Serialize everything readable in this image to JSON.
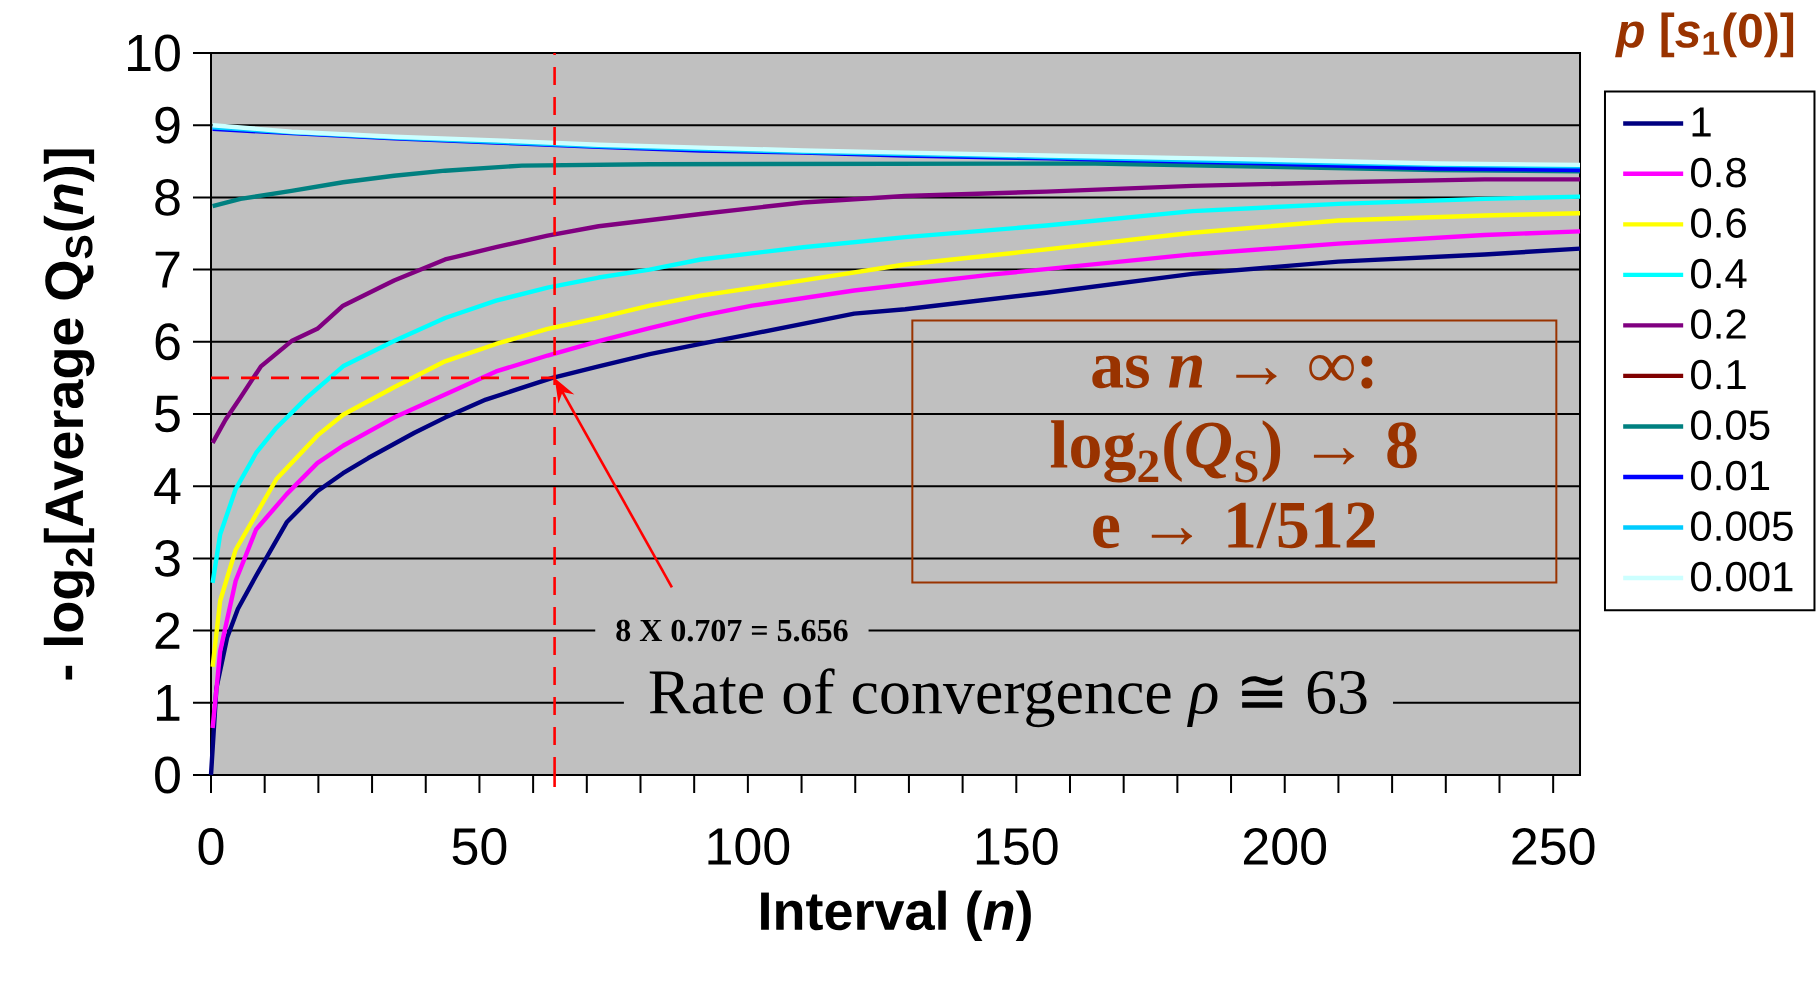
{
  "chart_data": {
    "type": "line",
    "xlabel": "Interval (*n*)",
    "ylabel": "- log$_{2}$[Average Q$_{S}$(*n*)]",
    "legend_title": "*p* [*s*$_{1}$(0)]",
    "xlim": [
      0,
      255
    ],
    "ylim": [
      0,
      10
    ],
    "xticks": [
      0,
      50,
      100,
      150,
      200,
      250
    ],
    "yticks": [
      0,
      1,
      2,
      3,
      4,
      5,
      6,
      7,
      8,
      9,
      10
    ],
    "grid": "y",
    "legend": "right",
    "marker": "none",
    "line_style": "solid",
    "series": [
      {
        "name": "1",
        "color": "#000080",
        "x": [
          0,
          1,
          3,
          5,
          8.4,
          14.1,
          19.8,
          24.6,
          29.3,
          37.9,
          43.6,
          51.2,
          57,
          63.6,
          72.2,
          81.7,
          91.2,
          100.8,
          110.3,
          119.8,
          129.3,
          155.6,
          182.8,
          210,
          237.2,
          255
        ],
        "values": [
          0,
          1.2,
          1.9,
          2.3,
          2.76,
          3.5,
          3.93,
          4.18,
          4.39,
          4.74,
          4.95,
          5.2,
          5.34,
          5.5,
          5.66,
          5.83,
          5.97,
          6.11,
          6.25,
          6.39,
          6.45,
          6.68,
          6.94,
          7.11,
          7.21,
          7.29
        ]
      },
      {
        "name": "0.8",
        "color": "#ff00ff",
        "x": [
          0.3,
          1.7,
          4.6,
          8.4,
          14.1,
          19.8,
          24.6,
          34.1,
          43.6,
          53.1,
          62.7,
          72.2,
          81.7,
          91.2,
          100.8,
          119.8,
          145.3,
          182.8,
          210,
          237.2,
          255
        ],
        "values": [
          0.65,
          1.71,
          2.69,
          3.4,
          3.89,
          4.32,
          4.56,
          4.95,
          5.27,
          5.59,
          5.81,
          6.01,
          6.19,
          6.36,
          6.5,
          6.71,
          6.93,
          7.21,
          7.36,
          7.48,
          7.53
        ]
      },
      {
        "name": "0.6",
        "color": "#ffff00",
        "x": [
          0.3,
          1.7,
          4.6,
          8.4,
          12.2,
          19.8,
          24.6,
          34.1,
          43.6,
          53.1,
          62.7,
          72.2,
          81.7,
          91.2,
          110.3,
          129.3,
          155.6,
          182.8,
          210,
          237.2,
          255
        ],
        "values": [
          1.5,
          2.41,
          3.12,
          3.61,
          4.1,
          4.7,
          4.99,
          5.37,
          5.73,
          5.97,
          6.18,
          6.33,
          6.5,
          6.64,
          6.85,
          7.07,
          7.28,
          7.51,
          7.68,
          7.75,
          7.78
        ]
      },
      {
        "name": "0.4",
        "color": "#00ffff",
        "x": [
          0.3,
          1.7,
          4.6,
          8.4,
          12.2,
          17.9,
          24.6,
          34.1,
          43.6,
          53.1,
          62.7,
          72.2,
          81.7,
          91.2,
          110.3,
          129.3,
          155.6,
          182.8,
          210,
          237.2,
          255
        ],
        "values": [
          2.66,
          3.33,
          3.96,
          4.46,
          4.81,
          5.23,
          5.66,
          6.01,
          6.33,
          6.57,
          6.75,
          6.89,
          7.0,
          7.14,
          7.31,
          7.45,
          7.61,
          7.81,
          7.91,
          7.98,
          8.01
        ]
      },
      {
        "name": "0.2",
        "color": "#800080",
        "x": [
          0.3,
          2.7,
          5.5,
          9.3,
          15,
          19.8,
          24.6,
          34.1,
          43.6,
          53.1,
          62.7,
          72.2,
          91.2,
          110.3,
          129.3,
          155.6,
          182.8,
          210,
          237.2,
          255
        ],
        "values": [
          4.6,
          4.92,
          5.23,
          5.66,
          6.01,
          6.18,
          6.5,
          6.85,
          7.14,
          7.31,
          7.47,
          7.6,
          7.77,
          7.93,
          8.02,
          8.08,
          8.16,
          8.21,
          8.25,
          8.25
        ]
      },
      {
        "name": "0.1",
        "color": "#800000"
      },
      {
        "name": "0.05",
        "color": "#008080",
        "x": [
          0.3,
          5.5,
          15,
          24.6,
          34.1,
          43.6,
          57.9,
          81.7,
          164.7,
          228.2,
          255
        ],
        "values": [
          7.88,
          7.98,
          8.09,
          8.21,
          8.3,
          8.37,
          8.44,
          8.46,
          8.47,
          8.38,
          8.36
        ]
      },
      {
        "name": "0.01",
        "color": "#0000ff",
        "x": [
          0.3,
          15,
          34.1,
          53.1,
          72.2,
          91.2,
          110.3,
          129.3,
          155.6,
          191.8,
          228.2,
          255
        ],
        "values": [
          8.95,
          8.89,
          8.82,
          8.76,
          8.7,
          8.65,
          8.62,
          8.58,
          8.54,
          8.48,
          8.4,
          8.38
        ]
      },
      {
        "name": "0.005",
        "color": "#00ccff",
        "x": [
          0.3,
          15,
          34.1,
          53.1,
          72.2,
          91.2,
          110.3,
          129.3,
          155.6,
          191.8,
          228.2,
          255
        ],
        "values": [
          8.97,
          8.9,
          8.83,
          8.77,
          8.71,
          8.67,
          8.63,
          8.6,
          8.56,
          8.5,
          8.45,
          8.43
        ]
      },
      {
        "name": "0.001",
        "color": "#ccffff",
        "x": [
          0.3,
          15,
          34.1,
          53.1,
          72.2,
          91.2,
          110.3,
          129.3,
          155.6,
          191.8,
          228.2,
          255
        ],
        "values": [
          9.0,
          8.91,
          8.84,
          8.79,
          8.73,
          8.69,
          8.65,
          8.62,
          8.58,
          8.53,
          8.47,
          8.45
        ]
      }
    ],
    "ref_lines": [
      {
        "axis": "x",
        "value": 64,
        "color": "#ff0000",
        "line_style": "dashed"
      },
      {
        "axis": "y",
        "value": 5.5,
        "color": "#ff0000",
        "line_style": "dashed"
      }
    ],
    "annotations": [
      "as  *n* → ∞:",
      "log$_{2}$(*Q*$_{S}$) → 8",
      "e → 1/512",
      "8 X 0.707 = 5.656",
      "Rate of convergence *ρ* ≅ 63"
    ]
  }
}
